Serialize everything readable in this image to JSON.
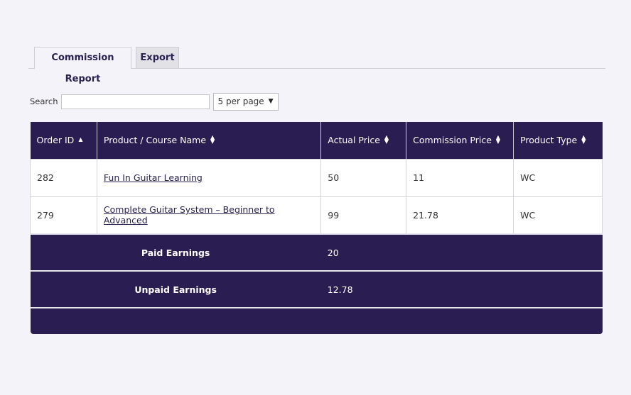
{
  "tabs": [
    {
      "label": "Commission Report",
      "active": true
    },
    {
      "label": "Export",
      "active": false
    }
  ],
  "search": {
    "label": "Search",
    "value": "",
    "placeholder": ""
  },
  "per_page": {
    "selected": "5 per page"
  },
  "table": {
    "columns": [
      {
        "label": "Order ID",
        "sort": "ascending"
      },
      {
        "label": "Product / Course Name",
        "sort": "none"
      },
      {
        "label": "Actual Price",
        "sort": "none"
      },
      {
        "label": "Commission Price",
        "sort": "none"
      },
      {
        "label": "Product Type",
        "sort": "none"
      }
    ],
    "rows": [
      {
        "order_id": "282",
        "product": "Fun In Guitar Learning",
        "actual_price": "50",
        "commission_price": "11",
        "product_type": "WC"
      },
      {
        "order_id": "279",
        "product": "Complete Guitar System – Beginner to Advanced",
        "actual_price": "99",
        "commission_price": "21.78",
        "product_type": "WC"
      }
    ]
  },
  "summary": {
    "paid_label": "Paid Earnings",
    "paid_value": "20",
    "unpaid_label": "Unpaid Earnings",
    "unpaid_value": "12.78"
  },
  "colors": {
    "header_bg": "#2a1d52",
    "page_bg": "#f5f3fa",
    "link": "#2a2150"
  }
}
